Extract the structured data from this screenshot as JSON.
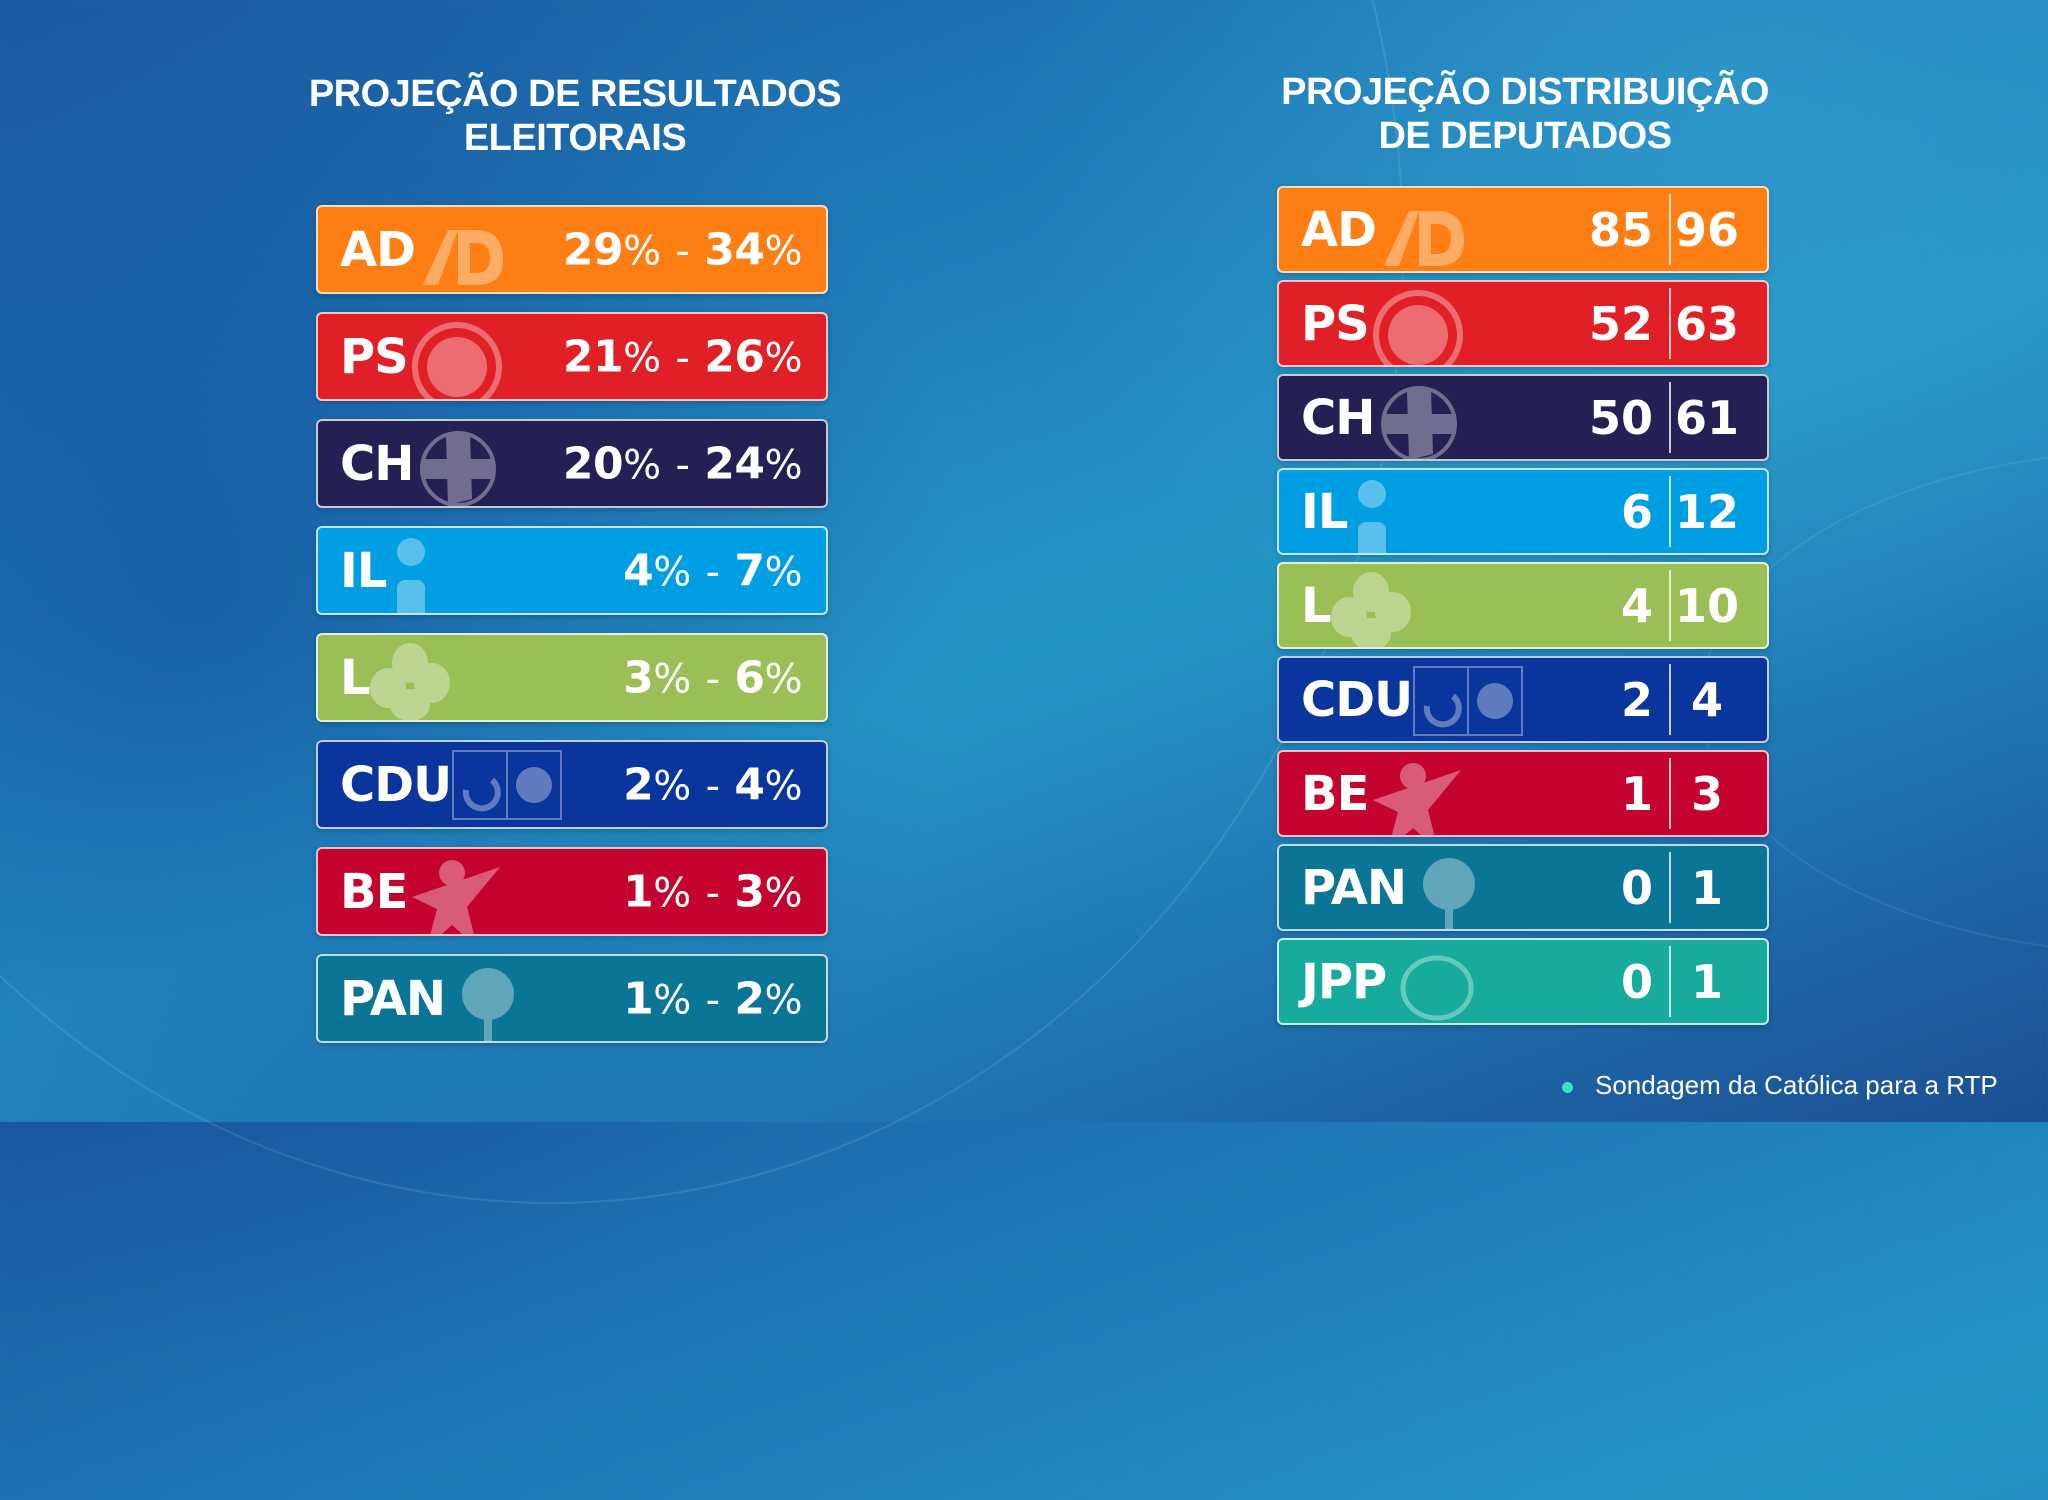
{
  "left_panel": {
    "title_line1": "PROJEÇÃO DE RESULTADOS",
    "title_line2": "ELEITORAIS",
    "rows": [
      {
        "party": "AD",
        "low": "29",
        "high": "34",
        "color": "#fd7f14",
        "logo": "ad-logo-icon"
      },
      {
        "party": "PS",
        "low": "21",
        "high": "26",
        "color": "#e01f27",
        "logo": "ps-fist-logo-icon"
      },
      {
        "party": "CH",
        "low": "20",
        "high": "24",
        "color": "#242053",
        "logo": "chega-logo-icon"
      },
      {
        "party": "IL",
        "low": "4",
        "high": "7",
        "color": "#009fe3",
        "logo": "il-logo-icon"
      },
      {
        "party": "L",
        "low": "3",
        "high": "6",
        "color": "#9bbf57",
        "logo": "livre-flower-logo-icon"
      },
      {
        "party": "CDU",
        "low": "2",
        "high": "4",
        "color": "#0a359c",
        "logo": "cdu-hammer-sickle-sunflower-icon"
      },
      {
        "party": "BE",
        "low": "1",
        "high": "3",
        "color": "#c4042f",
        "logo": "be-star-figure-icon"
      },
      {
        "party": "PAN",
        "low": "1",
        "high": "2",
        "color": "#0b7595",
        "logo": "pan-tree-logo-icon"
      }
    ],
    "percent_sign": "%",
    "range_separator": "-"
  },
  "right_panel": {
    "title_line1": "PROJEÇÃO DISTRIBUIÇÃO",
    "title_line2": "DE DEPUTADOS",
    "rows": [
      {
        "party": "AD",
        "min": "85",
        "max": "96",
        "color": "#fd7f14",
        "logo": "ad-logo-icon"
      },
      {
        "party": "PS",
        "min": "52",
        "max": "63",
        "color": "#e01f27",
        "logo": "ps-fist-logo-icon"
      },
      {
        "party": "CH",
        "min": "50",
        "max": "61",
        "color": "#242053",
        "logo": "chega-logo-icon"
      },
      {
        "party": "IL",
        "min": "6",
        "max": "12",
        "color": "#009fe3",
        "logo": "il-logo-icon"
      },
      {
        "party": "L",
        "min": "4",
        "max": "10",
        "color": "#9bbf57",
        "logo": "livre-flower-logo-icon"
      },
      {
        "party": "CDU",
        "min": "2",
        "max": "4",
        "color": "#0a359c",
        "logo": "cdu-hammer-sickle-sunflower-icon"
      },
      {
        "party": "BE",
        "min": "1",
        "max": "3",
        "color": "#c4042f",
        "logo": "be-star-figure-icon"
      },
      {
        "party": "PAN",
        "min": "0",
        "max": "1",
        "color": "#0b7595",
        "logo": "pan-tree-logo-icon"
      },
      {
        "party": "JPP",
        "min": "0",
        "max": "1",
        "color": "#16ab9c",
        "logo": "jpp-circle-logo-icon"
      }
    ]
  },
  "footer": {
    "source": "Sondagem da Católica para a RTP",
    "bullet_color": "#3fe0c8"
  }
}
